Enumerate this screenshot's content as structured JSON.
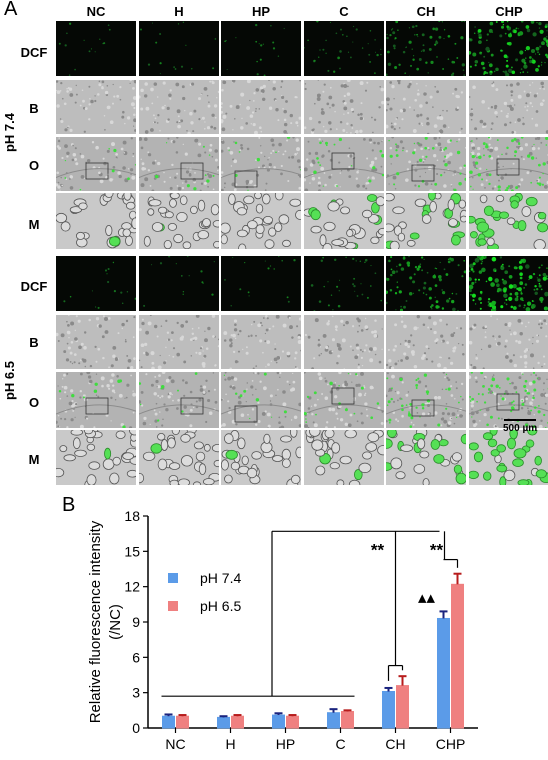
{
  "panel_a": {
    "letter": "A",
    "columns": [
      "NC",
      "H",
      "HP",
      "C",
      "CH",
      "CHP"
    ],
    "rows": [
      "DCF",
      "B",
      "O",
      "M"
    ],
    "groups": [
      "pH 7.4",
      "pH 6.5"
    ],
    "scale_bar_label": "500 µm",
    "dcf_intensity": {
      "pH 7.4": [
        0.05,
        0.06,
        0.07,
        0.2,
        0.45,
        0.8
      ],
      "pH 6.5": [
        0.05,
        0.05,
        0.06,
        0.18,
        0.55,
        0.9
      ]
    }
  },
  "panel_b": {
    "letter": "B",
    "chart_data": {
      "type": "bar",
      "categories": [
        "NC",
        "H",
        "HP",
        "C",
        "CH",
        "CHP"
      ],
      "series": [
        {
          "name": "pH 7.4",
          "color": "#5b9be8",
          "error_color": "#1a237e",
          "values": [
            1.0,
            0.9,
            1.1,
            1.3,
            3.1,
            9.3
          ],
          "errors": [
            0.15,
            0.1,
            0.15,
            0.3,
            0.3,
            0.6
          ]
        },
        {
          "name": "pH 6.5",
          "color": "#ef8080",
          "error_color": "#b71c1c",
          "values": [
            1.0,
            1.0,
            1.0,
            1.4,
            3.6,
            12.2
          ],
          "errors": [
            0.1,
            0.1,
            0.1,
            0.1,
            0.8,
            0.9
          ]
        }
      ],
      "ylabel": "Relative fluorescence intensity\n(/NC)",
      "ylim": [
        0,
        18
      ],
      "yticks": [
        0,
        3,
        6,
        9,
        12,
        15,
        18
      ],
      "legend_position": "left",
      "annotations": {
        "sig1": "**",
        "sig2": "**",
        "triangles": "▲▲"
      }
    }
  }
}
